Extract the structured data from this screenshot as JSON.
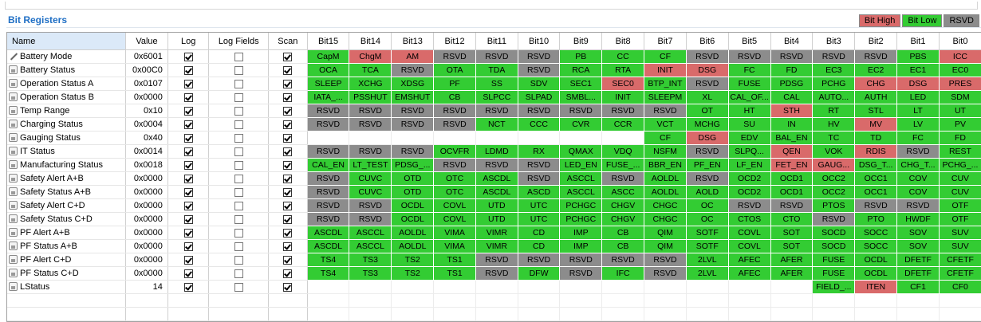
{
  "title": "Bit Registers",
  "legend": [
    {
      "label": "Bit High",
      "color": "#d96a6a"
    },
    {
      "label": "Bit Low",
      "color": "#33cc33"
    },
    {
      "label": "RSVD",
      "color": "#8c8c8c"
    }
  ],
  "colors": {
    "H": "#d96a6a",
    "L": "#33cc33",
    "R": "#8c8c8c"
  },
  "columns": {
    "name": "Name",
    "value": "Value",
    "log": "Log",
    "log_fields": "Log Fields",
    "scan": "Scan",
    "bits": [
      "Bit15",
      "Bit14",
      "Bit13",
      "Bit12",
      "Bit11",
      "Bit10",
      "Bit9",
      "Bit8",
      "Bit7",
      "Bit6",
      "Bit5",
      "Bit4",
      "Bit3",
      "Bit2",
      "Bit1",
      "Bit0"
    ]
  },
  "rows": [
    {
      "name": "Battery Mode",
      "icon": "pencil-icon",
      "value": "0x6001",
      "log": true,
      "log_fields": false,
      "scan": true,
      "bits": [
        [
          "CapM",
          "L"
        ],
        [
          "ChgM",
          "H"
        ],
        [
          "AM",
          "H"
        ],
        [
          "RSVD",
          "R"
        ],
        [
          "RSVD",
          "R"
        ],
        [
          "RSVD",
          "R"
        ],
        [
          "PB",
          "L"
        ],
        [
          "CC",
          "L"
        ],
        [
          "CF",
          "L"
        ],
        [
          "RSVD",
          "R"
        ],
        [
          "RSVD",
          "R"
        ],
        [
          "RSVD",
          "R"
        ],
        [
          "RSVD",
          "R"
        ],
        [
          "RSVD",
          "R"
        ],
        [
          "PBS",
          "L"
        ],
        [
          "ICC",
          "H"
        ]
      ]
    },
    {
      "name": "Battery Status",
      "icon": "lock-icon",
      "value": "0x00C0",
      "log": true,
      "log_fields": false,
      "scan": true,
      "bits": [
        [
          "OCA",
          "L"
        ],
        [
          "TCA",
          "L"
        ],
        [
          "RSVD",
          "R"
        ],
        [
          "OTA",
          "L"
        ],
        [
          "TDA",
          "L"
        ],
        [
          "RSVD",
          "R"
        ],
        [
          "RCA",
          "L"
        ],
        [
          "RTA",
          "L"
        ],
        [
          "INIT",
          "H"
        ],
        [
          "DSG",
          "H"
        ],
        [
          "FC",
          "L"
        ],
        [
          "FD",
          "L"
        ],
        [
          "EC3",
          "L"
        ],
        [
          "EC2",
          "L"
        ],
        [
          "EC1",
          "L"
        ],
        [
          "EC0",
          "L"
        ]
      ]
    },
    {
      "name": "Operation Status A",
      "icon": "lock-icon",
      "value": "0x0107",
      "log": true,
      "log_fields": false,
      "scan": true,
      "bits": [
        [
          "SLEEP",
          "L"
        ],
        [
          "XCHG",
          "L"
        ],
        [
          "XDSG",
          "L"
        ],
        [
          "PF",
          "L"
        ],
        [
          "SS",
          "L"
        ],
        [
          "SDV",
          "L"
        ],
        [
          "SEC1",
          "L"
        ],
        [
          "SEC0",
          "H"
        ],
        [
          "BTP_INT",
          "L"
        ],
        [
          "RSVD",
          "R"
        ],
        [
          "FUSE",
          "L"
        ],
        [
          "PDSG",
          "L"
        ],
        [
          "PCHG",
          "L"
        ],
        [
          "CHG",
          "H"
        ],
        [
          "DSG",
          "H"
        ],
        [
          "PRES",
          "H"
        ]
      ]
    },
    {
      "name": "Operation Status B",
      "icon": "lock-icon",
      "value": "0x0000",
      "log": true,
      "log_fields": false,
      "scan": true,
      "bits": [
        [
          "IATA_...",
          "L"
        ],
        [
          "PSSHUT",
          "L"
        ],
        [
          "EMSHUT",
          "L"
        ],
        [
          "CB",
          "L"
        ],
        [
          "SLPCC",
          "L"
        ],
        [
          "SLPAD",
          "L"
        ],
        [
          "SMBL...",
          "L"
        ],
        [
          "INIT",
          "L"
        ],
        [
          "SLEEPM",
          "L"
        ],
        [
          "XL",
          "L"
        ],
        [
          "CAL_OF...",
          "L"
        ],
        [
          "CAL",
          "L"
        ],
        [
          "AUTO...",
          "L"
        ],
        [
          "AUTH",
          "L"
        ],
        [
          "LED",
          "L"
        ],
        [
          "SDM",
          "L"
        ]
      ]
    },
    {
      "name": "Temp Range",
      "icon": "lock-icon",
      "value": "0x10",
      "log": true,
      "log_fields": false,
      "scan": true,
      "bits": [
        [
          "RSVD",
          "R"
        ],
        [
          "RSVD",
          "R"
        ],
        [
          "RSVD",
          "R"
        ],
        [
          "RSVD",
          "R"
        ],
        [
          "RSVD",
          "R"
        ],
        [
          "RSVD",
          "R"
        ],
        [
          "RSVD",
          "R"
        ],
        [
          "RSVD",
          "R"
        ],
        [
          "RSVD",
          "R"
        ],
        [
          "OT",
          "L"
        ],
        [
          "HT",
          "L"
        ],
        [
          "STH",
          "H"
        ],
        [
          "RT",
          "L"
        ],
        [
          "STL",
          "L"
        ],
        [
          "LT",
          "L"
        ],
        [
          "UT",
          "L"
        ]
      ]
    },
    {
      "name": "Charging Status",
      "icon": "lock-icon",
      "value": "0x0004",
      "log": true,
      "log_fields": false,
      "scan": true,
      "bits": [
        [
          "RSVD",
          "R"
        ],
        [
          "RSVD",
          "R"
        ],
        [
          "RSVD",
          "R"
        ],
        [
          "RSVD",
          "R"
        ],
        [
          "NCT",
          "L"
        ],
        [
          "CCC",
          "L"
        ],
        [
          "CVR",
          "L"
        ],
        [
          "CCR",
          "L"
        ],
        [
          "VCT",
          "L"
        ],
        [
          "MCHG",
          "L"
        ],
        [
          "SU",
          "L"
        ],
        [
          "IN",
          "L"
        ],
        [
          "HV",
          "L"
        ],
        [
          "MV",
          "H"
        ],
        [
          "LV",
          "L"
        ],
        [
          "PV",
          "L"
        ]
      ]
    },
    {
      "name": "Gauging Status",
      "icon": "lock-icon",
      "value": "0x40",
      "log": true,
      "log_fields": false,
      "scan": true,
      "bits": [
        null,
        null,
        null,
        null,
        null,
        null,
        null,
        null,
        [
          "CF",
          "L"
        ],
        [
          "DSG",
          "H"
        ],
        [
          "EDV",
          "L"
        ],
        [
          "BAL_EN",
          "L"
        ],
        [
          "TC",
          "L"
        ],
        [
          "TD",
          "L"
        ],
        [
          "FC",
          "L"
        ],
        [
          "FD",
          "L"
        ]
      ]
    },
    {
      "name": "IT Status",
      "icon": "lock-icon",
      "value": "0x0014",
      "log": true,
      "log_fields": false,
      "scan": true,
      "bits": [
        [
          "RSVD",
          "R"
        ],
        [
          "RSVD",
          "R"
        ],
        [
          "RSVD",
          "R"
        ],
        [
          "OCVFR",
          "L"
        ],
        [
          "LDMD",
          "L"
        ],
        [
          "RX",
          "L"
        ],
        [
          "QMAX",
          "L"
        ],
        [
          "VDQ",
          "L"
        ],
        [
          "NSFM",
          "L"
        ],
        [
          "RSVD",
          "R"
        ],
        [
          "SLPQ...",
          "L"
        ],
        [
          "QEN",
          "H"
        ],
        [
          "VOK",
          "L"
        ],
        [
          "RDIS",
          "H"
        ],
        [
          "RSVD",
          "R"
        ],
        [
          "REST",
          "L"
        ]
      ]
    },
    {
      "name": "Manufacturing Status",
      "icon": "lock-icon",
      "value": "0x0018",
      "log": true,
      "log_fields": false,
      "scan": true,
      "bits": [
        [
          "CAL_EN",
          "L"
        ],
        [
          "LT_TEST",
          "L"
        ],
        [
          "PDSG_...",
          "L"
        ],
        [
          "RSVD",
          "R"
        ],
        [
          "RSVD",
          "R"
        ],
        [
          "RSVD",
          "R"
        ],
        [
          "LED_EN",
          "L"
        ],
        [
          "FUSE_...",
          "L"
        ],
        [
          "BBR_EN",
          "L"
        ],
        [
          "PF_EN",
          "L"
        ],
        [
          "LF_EN",
          "L"
        ],
        [
          "FET_EN",
          "H"
        ],
        [
          "GAUG...",
          "H"
        ],
        [
          "DSG_T...",
          "L"
        ],
        [
          "CHG_T...",
          "L"
        ],
        [
          "PCHG_...",
          "L"
        ]
      ]
    },
    {
      "name": "Safety Alert A+B",
      "icon": "lock-icon",
      "value": "0x0000",
      "log": true,
      "log_fields": false,
      "scan": true,
      "bits": [
        [
          "RSVD",
          "R"
        ],
        [
          "CUVC",
          "L"
        ],
        [
          "OTD",
          "L"
        ],
        [
          "OTC",
          "L"
        ],
        [
          "ASCDL",
          "L"
        ],
        [
          "RSVD",
          "R"
        ],
        [
          "ASCCL",
          "L"
        ],
        [
          "RSVD",
          "R"
        ],
        [
          "AOLDL",
          "L"
        ],
        [
          "RSVD",
          "R"
        ],
        [
          "OCD2",
          "L"
        ],
        [
          "OCD1",
          "L"
        ],
        [
          "OCC2",
          "L"
        ],
        [
          "OCC1",
          "L"
        ],
        [
          "COV",
          "L"
        ],
        [
          "CUV",
          "L"
        ]
      ]
    },
    {
      "name": "Safety Status A+B",
      "icon": "lock-icon",
      "value": "0x0000",
      "log": true,
      "log_fields": false,
      "scan": true,
      "bits": [
        [
          "RSVD",
          "R"
        ],
        [
          "CUVC",
          "L"
        ],
        [
          "OTD",
          "L"
        ],
        [
          "OTC",
          "L"
        ],
        [
          "ASCDL",
          "L"
        ],
        [
          "ASCD",
          "L"
        ],
        [
          "ASCCL",
          "L"
        ],
        [
          "ASCC",
          "L"
        ],
        [
          "AOLDL",
          "L"
        ],
        [
          "AOLD",
          "L"
        ],
        [
          "OCD2",
          "L"
        ],
        [
          "OCD1",
          "L"
        ],
        [
          "OCC2",
          "L"
        ],
        [
          "OCC1",
          "L"
        ],
        [
          "COV",
          "L"
        ],
        [
          "CUV",
          "L"
        ]
      ]
    },
    {
      "name": "Safety Alert C+D",
      "icon": "lock-icon",
      "value": "0x0000",
      "log": true,
      "log_fields": false,
      "scan": true,
      "bits": [
        [
          "RSVD",
          "R"
        ],
        [
          "RSVD",
          "R"
        ],
        [
          "OCDL",
          "L"
        ],
        [
          "COVL",
          "L"
        ],
        [
          "UTD",
          "L"
        ],
        [
          "UTC",
          "L"
        ],
        [
          "PCHGC",
          "L"
        ],
        [
          "CHGV",
          "L"
        ],
        [
          "CHGC",
          "L"
        ],
        [
          "OC",
          "L"
        ],
        [
          "RSVD",
          "R"
        ],
        [
          "RSVD",
          "R"
        ],
        [
          "PTOS",
          "L"
        ],
        [
          "RSVD",
          "R"
        ],
        [
          "RSVD",
          "R"
        ],
        [
          "OTF",
          "L"
        ]
      ]
    },
    {
      "name": "Safety Status C+D",
      "icon": "lock-icon",
      "value": "0x0000",
      "log": true,
      "log_fields": false,
      "scan": true,
      "bits": [
        [
          "RSVD",
          "R"
        ],
        [
          "RSVD",
          "R"
        ],
        [
          "OCDL",
          "L"
        ],
        [
          "COVL",
          "L"
        ],
        [
          "UTD",
          "L"
        ],
        [
          "UTC",
          "L"
        ],
        [
          "PCHGC",
          "L"
        ],
        [
          "CHGV",
          "L"
        ],
        [
          "CHGC",
          "L"
        ],
        [
          "OC",
          "L"
        ],
        [
          "CTOS",
          "L"
        ],
        [
          "CTO",
          "L"
        ],
        [
          "RSVD",
          "R"
        ],
        [
          "PTO",
          "L"
        ],
        [
          "HWDF",
          "L"
        ],
        [
          "OTF",
          "L"
        ]
      ]
    },
    {
      "name": "PF Alert A+B",
      "icon": "lock-icon",
      "value": "0x0000",
      "log": true,
      "log_fields": false,
      "scan": true,
      "bits": [
        [
          "ASCDL",
          "L"
        ],
        [
          "ASCCL",
          "L"
        ],
        [
          "AOLDL",
          "L"
        ],
        [
          "VIMA",
          "L"
        ],
        [
          "VIMR",
          "L"
        ],
        [
          "CD",
          "L"
        ],
        [
          "IMP",
          "L"
        ],
        [
          "CB",
          "L"
        ],
        [
          "QIM",
          "L"
        ],
        [
          "SOTF",
          "L"
        ],
        [
          "COVL",
          "L"
        ],
        [
          "SOT",
          "L"
        ],
        [
          "SOCD",
          "L"
        ],
        [
          "SOCC",
          "L"
        ],
        [
          "SOV",
          "L"
        ],
        [
          "SUV",
          "L"
        ]
      ]
    },
    {
      "name": "PF Status A+B",
      "icon": "lock-icon",
      "value": "0x0000",
      "log": true,
      "log_fields": false,
      "scan": true,
      "bits": [
        [
          "ASCDL",
          "L"
        ],
        [
          "ASCCL",
          "L"
        ],
        [
          "AOLDL",
          "L"
        ],
        [
          "VIMA",
          "L"
        ],
        [
          "VIMR",
          "L"
        ],
        [
          "CD",
          "L"
        ],
        [
          "IMP",
          "L"
        ],
        [
          "CB",
          "L"
        ],
        [
          "QIM",
          "L"
        ],
        [
          "SOTF",
          "L"
        ],
        [
          "COVL",
          "L"
        ],
        [
          "SOT",
          "L"
        ],
        [
          "SOCD",
          "L"
        ],
        [
          "SOCC",
          "L"
        ],
        [
          "SOV",
          "L"
        ],
        [
          "SUV",
          "L"
        ]
      ]
    },
    {
      "name": "PF Alert C+D",
      "icon": "lock-icon",
      "value": "0x0000",
      "log": true,
      "log_fields": false,
      "scan": true,
      "bits": [
        [
          "TS4",
          "L"
        ],
        [
          "TS3",
          "L"
        ],
        [
          "TS2",
          "L"
        ],
        [
          "TS1",
          "L"
        ],
        [
          "RSVD",
          "R"
        ],
        [
          "RSVD",
          "R"
        ],
        [
          "RSVD",
          "R"
        ],
        [
          "RSVD",
          "R"
        ],
        [
          "RSVD",
          "R"
        ],
        [
          "2LVL",
          "L"
        ],
        [
          "AFEC",
          "L"
        ],
        [
          "AFER",
          "L"
        ],
        [
          "FUSE",
          "L"
        ],
        [
          "OCDL",
          "L"
        ],
        [
          "DFETF",
          "L"
        ],
        [
          "CFETF",
          "L"
        ]
      ]
    },
    {
      "name": "PF Status C+D",
      "icon": "lock-icon",
      "value": "0x0000",
      "log": true,
      "log_fields": false,
      "scan": true,
      "bits": [
        [
          "TS4",
          "L"
        ],
        [
          "TS3",
          "L"
        ],
        [
          "TS2",
          "L"
        ],
        [
          "TS1",
          "L"
        ],
        [
          "RSVD",
          "R"
        ],
        [
          "DFW",
          "L"
        ],
        [
          "RSVD",
          "R"
        ],
        [
          "IFC",
          "L"
        ],
        [
          "RSVD",
          "R"
        ],
        [
          "2LVL",
          "L"
        ],
        [
          "AFEC",
          "L"
        ],
        [
          "AFER",
          "L"
        ],
        [
          "FUSE",
          "L"
        ],
        [
          "OCDL",
          "L"
        ],
        [
          "DFETF",
          "L"
        ],
        [
          "CFETF",
          "L"
        ]
      ]
    },
    {
      "name": "LStatus",
      "icon": "lock-icon",
      "value": "14",
      "log": true,
      "log_fields": false,
      "scan": true,
      "bits": [
        null,
        null,
        null,
        null,
        null,
        null,
        null,
        null,
        null,
        null,
        null,
        null,
        [
          "FIELD_...",
          "L"
        ],
        [
          "ITEN",
          "H"
        ],
        [
          "CF1",
          "L"
        ],
        [
          "CF0",
          "L"
        ]
      ]
    }
  ],
  "empty_rows": 2
}
